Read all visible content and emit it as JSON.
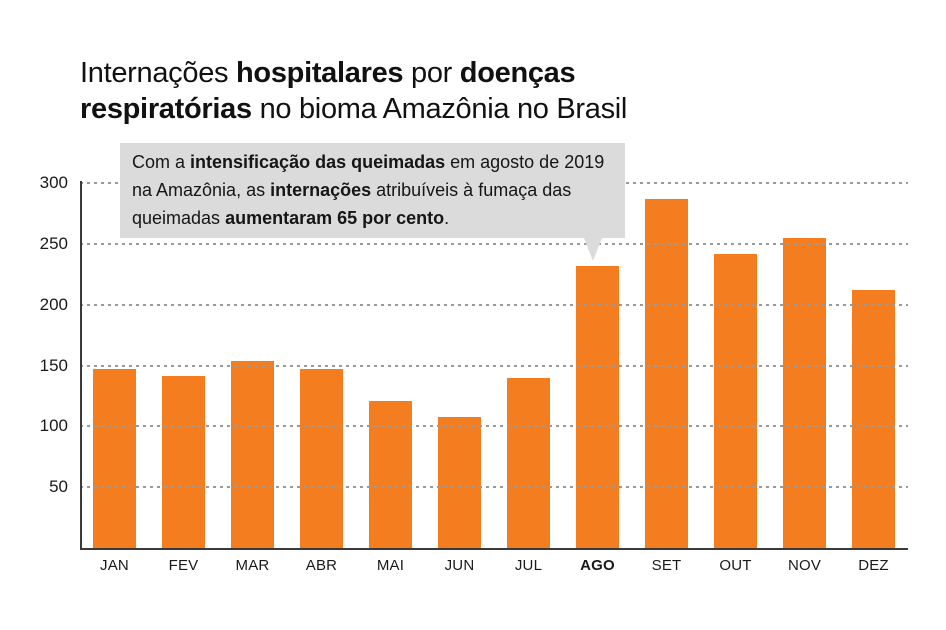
{
  "title": {
    "text": "Internações hospitalares por doenças respiratórias no bioma Amazônia no Brasil",
    "segments": [
      {
        "t": "Internações ",
        "b": false
      },
      {
        "t": "hospitalares",
        "b": true
      },
      {
        "t": " por ",
        "b": false
      },
      {
        "t": "doenças respiratórias",
        "b": true
      },
      {
        "t": " no bioma Amazônia no Brasil",
        "b": false
      }
    ]
  },
  "annotation": {
    "text": "Com a intensificação das queimadas em agosto de 2019 na Amazônia, as internações atribuíveis à fumaça das queimadas aumentaram 65 por cento.",
    "segments": [
      {
        "t": "Com a ",
        "b": false
      },
      {
        "t": "intensificação das queimadas",
        "b": true
      },
      {
        "t": " em agosto de 2019 na Amazônia, as ",
        "b": false
      },
      {
        "t": "internações",
        "b": true
      },
      {
        "t": " atribuíveis à fumaça das queimadas ",
        "b": false
      },
      {
        "t": "aumentaram 65 por cento",
        "b": true
      },
      {
        "t": ".",
        "b": false
      }
    ],
    "points_to": "AGO"
  },
  "chart_data": {
    "type": "bar",
    "title": "Internações hospitalares por doenças respiratórias no bioma Amazônia no Brasil",
    "categories": [
      "JAN",
      "FEV",
      "MAR",
      "ABR",
      "MAI",
      "JUN",
      "JUL",
      "AGO",
      "SET",
      "OUT",
      "NOV",
      "DEZ"
    ],
    "values": [
      147,
      141,
      154,
      147,
      121,
      108,
      140,
      232,
      287,
      242,
      255,
      212
    ],
    "highlight_category": "AGO",
    "xlabel": "",
    "ylabel": "",
    "ylim": [
      0,
      300
    ],
    "yticks": [
      50,
      100,
      150,
      200,
      250,
      300
    ],
    "grid": "horizontal-dashed",
    "legend": "none",
    "bar_color": "#f47d20"
  },
  "colors": {
    "bar_orange": "#f47d20",
    "annotation_bg": "#dbdbdb",
    "gridline": "#9a9a9a",
    "axis": "#3a3a3a",
    "text": "#121212",
    "background": "#ffffff"
  }
}
